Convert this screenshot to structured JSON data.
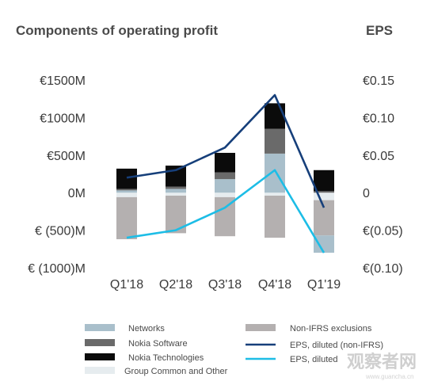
{
  "chart_data": {
    "type": "bar",
    "title": "Components of operating profit",
    "right_title": "EPS",
    "categories": [
      "Q1'18",
      "Q2'18",
      "Q3'18",
      "Q4'18",
      "Q1'19"
    ],
    "left_axis": {
      "ticks": [
        1500,
        1000,
        500,
        0,
        -500,
        -1000
      ],
      "tick_labels": [
        "€1500M",
        "€1000M",
        "€500M",
        "0M",
        "€ (500)M",
        "€ (1000)M"
      ],
      "ylim": [
        -1000,
        1500
      ]
    },
    "right_axis": {
      "ticks": [
        0.15,
        0.1,
        0.05,
        0,
        -0.05,
        -0.1
      ],
      "tick_labels": [
        "€0.15",
        "€0.10",
        "€0.05",
        "0",
        "€(0.05)",
        "€(0.10)"
      ],
      "ylim": [
        -0.1,
        0.15
      ]
    },
    "series": [
      {
        "name": "Group Common and Other",
        "kind": "bar",
        "color": "#e6ecef",
        "values": [
          -60,
          -40,
          -60,
          -40,
          -100
        ]
      },
      {
        "name": "Non-IFRS exclusions",
        "kind": "bar",
        "color": "#b4b0b0",
        "values": [
          -560,
          -500,
          -520,
          -560,
          -470
        ]
      },
      {
        "name": "Networks",
        "kind": "bar",
        "color": "#a9bfcb",
        "values": [
          30,
          50,
          180,
          520,
          -230
        ]
      },
      {
        "name": "Nokia Software",
        "kind": "bar",
        "color": "#6a6a6a",
        "values": [
          20,
          30,
          90,
          330,
          20
        ]
      },
      {
        "name": "Nokia Technologies",
        "kind": "bar",
        "color": "#0b0b0b",
        "values": [
          270,
          280,
          260,
          340,
          280
        ]
      },
      {
        "name": "EPS, diluted (non-IFRS)",
        "kind": "line",
        "axis": "right",
        "color": "#163f7a",
        "values": [
          0.02,
          0.03,
          0.06,
          0.13,
          -0.02
        ]
      },
      {
        "name": "EPS, diluted",
        "kind": "line",
        "axis": "right",
        "color": "#1dbde6",
        "values": [
          -0.06,
          -0.05,
          -0.02,
          0.03,
          -0.08
        ]
      }
    ],
    "legend_placement": "bottom",
    "grid": false
  },
  "watermark": {
    "main": "观察者网",
    "sub": "www.guancha.cn"
  }
}
